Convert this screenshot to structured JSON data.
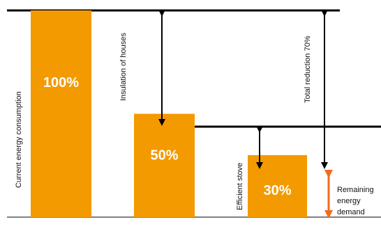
{
  "chart_data": {
    "type": "bar",
    "categories": [
      "Current energy consumption",
      "Insulation of houses",
      "Efficient stove"
    ],
    "values": [
      100,
      50,
      30
    ],
    "value_labels": [
      "100%",
      "50%",
      "30%"
    ],
    "unit": "%",
    "ylim": [
      0,
      100
    ],
    "grid": false,
    "annotations": {
      "current": "Current energy consumption",
      "insulation": "Insulation of houses",
      "stove": "Efficient stove",
      "total": "Total reduction 70%",
      "remaining": "Remaining energy demand"
    },
    "colors": {
      "bar": "#f39a00",
      "remaining_arrow": "#f26b1d",
      "lines": "#000000"
    }
  }
}
